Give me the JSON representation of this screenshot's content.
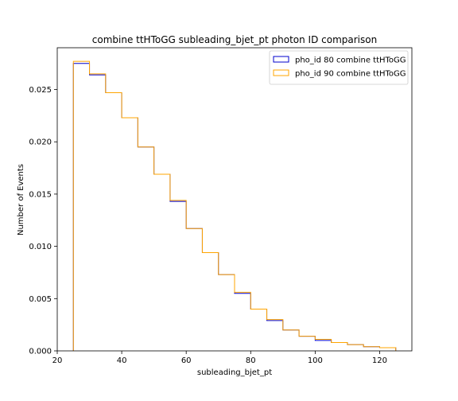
{
  "chart_data": {
    "type": "histogram",
    "title": "combine ttHToGG subleading_bjet_pt photon ID comparison",
    "xlabel": "subleading_bjet_pt",
    "ylabel": "Number of Events",
    "xlim": [
      20,
      130
    ],
    "ylim": [
      0,
      0.029
    ],
    "x_ticks": [
      20,
      40,
      60,
      80,
      100,
      120
    ],
    "y_ticks": [
      0.0,
      0.005,
      0.01,
      0.015,
      0.02,
      0.025
    ],
    "y_tick_labels": [
      "0.000",
      "0.005",
      "0.010",
      "0.015",
      "0.020",
      "0.025"
    ],
    "bin_edges": [
      25,
      30,
      35,
      40,
      45,
      50,
      55,
      60,
      65,
      70,
      75,
      80,
      85,
      90,
      95,
      100,
      105,
      110,
      115,
      120,
      125
    ],
    "grid": false,
    "legend_position": "upper right",
    "series": [
      {
        "name": "pho_id 80 combine ttHToGG",
        "color": "#0000cc",
        "values": [
          0.0275,
          0.0264,
          0.0247,
          0.0223,
          0.0195,
          0.0169,
          0.0143,
          0.0117,
          0.0094,
          0.0073,
          0.0055,
          0.004,
          0.0029,
          0.002,
          0.0014,
          0.001,
          0.0008,
          0.0006,
          0.0004,
          0.0003
        ]
      },
      {
        "name": "pho_id 90 combine ttHToGG",
        "color": "#ffa500",
        "values": [
          0.0277,
          0.0265,
          0.0247,
          0.0223,
          0.0195,
          0.0169,
          0.0144,
          0.0117,
          0.0094,
          0.0073,
          0.0056,
          0.004,
          0.003,
          0.002,
          0.0014,
          0.0011,
          0.0008,
          0.0006,
          0.0004,
          0.0003
        ]
      }
    ]
  }
}
